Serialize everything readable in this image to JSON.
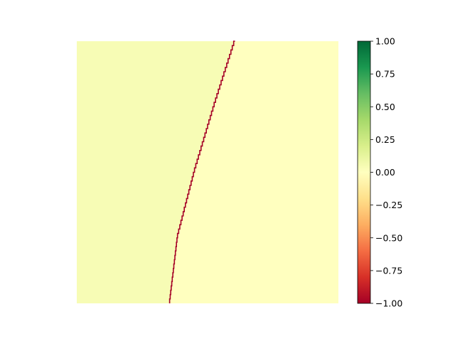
{
  "chart_data": {
    "type": "heatmap",
    "title": "",
    "xlabel": "",
    "ylabel": "",
    "axes_visible": false,
    "colormap": "RdYlGn",
    "value_range": [
      -1.0,
      1.0
    ],
    "background_value": 0.0,
    "left_region_value": 0.04,
    "boundary_line": {
      "value": -1.0,
      "description_points_rowcol": [
        [
          0.0,
          0.605
        ],
        [
          0.25,
          0.525
        ],
        [
          0.5,
          0.45
        ],
        [
          0.75,
          0.385
        ],
        [
          1.0,
          0.355
        ]
      ]
    },
    "colorbar": {
      "orientation": "vertical",
      "position": "right",
      "ticks": [
        1.0,
        0.75,
        0.5,
        0.25,
        0.0,
        -0.25,
        -0.5,
        -0.75,
        -1.0
      ],
      "tick_labels": [
        "1.00",
        "0.75",
        "0.50",
        "0.25",
        "0.00",
        "−0.25",
        "−0.50",
        "−0.75",
        "−1.00"
      ],
      "colors": [
        "#a50026",
        "#d73027",
        "#f46d43",
        "#fdae61",
        "#fee08b",
        "#ffffbf",
        "#d9ef8b",
        "#a6d96a",
        "#66bd63",
        "#1a9850",
        "#006837"
      ]
    }
  }
}
